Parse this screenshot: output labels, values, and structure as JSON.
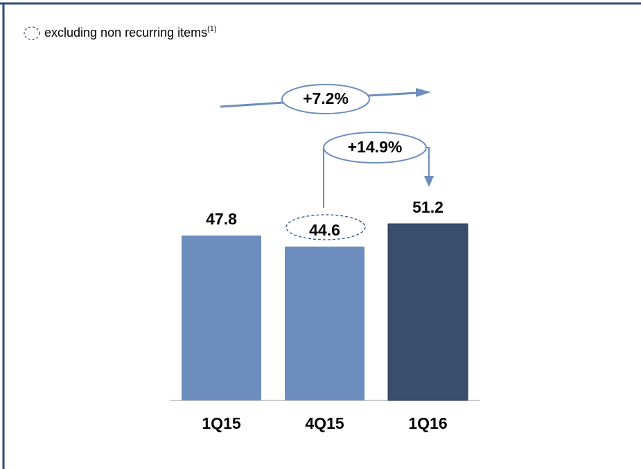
{
  "chart_data": {
    "type": "bar",
    "legend": {
      "text": "excluding non recurring items",
      "superscript": "(1)"
    },
    "categories": [
      "1Q15",
      "4Q15",
      "1Q16"
    ],
    "values": [
      47.8,
      44.6,
      51.2
    ],
    "colors": [
      "#6c8dbd",
      "#6c8dbd",
      "#394d6d"
    ],
    "annotations": [
      "+7.2%",
      "+14.9%"
    ]
  }
}
